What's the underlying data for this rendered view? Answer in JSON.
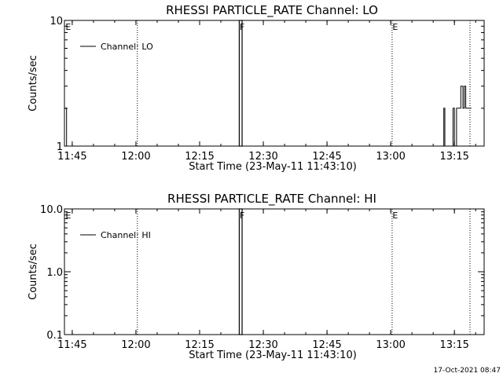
{
  "stamp": "17-Oct-2021 08:47",
  "chart_data": [
    {
      "type": "line",
      "title": "RHESSI PARTICLE_RATE Channel: LO",
      "xlabel": "Start Time (23-May-11 11:43:10)",
      "ylabel": "Counts/sec",
      "x_units": "time (HH:MM)",
      "xlim": [
        "11:43:10",
        "13:22:00"
      ],
      "ylim": [
        1,
        10
      ],
      "y_scale": "log",
      "grid": false,
      "legend": "top-left",
      "xticks": [
        "11:45",
        "12:00",
        "12:15",
        "12:30",
        "12:45",
        "13:00",
        "13:15"
      ],
      "yticks": [
        "1",
        "10"
      ],
      "series": [
        {
          "name": "Channel: LO",
          "color": "#000000",
          "points": [
            [
              "11:43:10",
              2
            ],
            [
              "11:43:40",
              2
            ],
            [
              "11:43:40",
              1
            ],
            [
              "13:12:30",
              1
            ],
            [
              "13:12:30",
              2
            ],
            [
              "13:12:45",
              2
            ],
            [
              "13:12:45",
              1
            ],
            [
              "13:14:40",
              1
            ],
            [
              "13:14:40",
              2
            ],
            [
              "13:15:00",
              2
            ],
            [
              "13:15:00",
              1
            ],
            [
              "13:15:30",
              1
            ],
            [
              "13:15:30",
              2
            ],
            [
              "13:16:30",
              2
            ],
            [
              "13:16:30",
              3
            ],
            [
              "13:17:00",
              3
            ],
            [
              "13:17:00",
              2
            ],
            [
              "13:17:20",
              2
            ],
            [
              "13:17:20",
              3
            ],
            [
              "13:17:40",
              3
            ],
            [
              "13:17:40",
              2
            ],
            [
              "13:19:00",
              2
            ]
          ]
        }
      ],
      "annotations": [
        {
          "text": "E",
          "time": "11:43:20",
          "line": false
        },
        {
          "text": "",
          "time": "12:00:20",
          "line": true
        },
        {
          "text": "F",
          "time": "12:24:20",
          "line": false
        },
        {
          "text": "E",
          "time": "13:00:20",
          "line": true
        },
        {
          "text": "",
          "time": "13:18:40",
          "line": true
        }
      ],
      "bands": [
        [
          "12:24:20",
          "12:25:00"
        ]
      ]
    },
    {
      "type": "line",
      "title": "RHESSI PARTICLE_RATE Channel: HI",
      "xlabel": "Start Time (23-May-11 11:43:10)",
      "ylabel": "Counts/sec",
      "x_units": "time (HH:MM)",
      "xlim": [
        "11:43:10",
        "13:22:00"
      ],
      "ylim": [
        0.1,
        10
      ],
      "y_scale": "log",
      "grid": false,
      "legend": "top-left",
      "xticks": [
        "11:45",
        "12:00",
        "12:15",
        "12:30",
        "12:45",
        "13:00",
        "13:15"
      ],
      "yticks": [
        "0.1",
        "1.0",
        "10.0"
      ],
      "series": [
        {
          "name": "Channel: HI",
          "color": "#000000",
          "points": []
        }
      ],
      "annotations": [
        {
          "text": "E",
          "time": "11:43:20",
          "line": false
        },
        {
          "text": "",
          "time": "12:00:20",
          "line": true
        },
        {
          "text": "F",
          "time": "12:24:20",
          "line": false
        },
        {
          "text": "E",
          "time": "13:00:20",
          "line": true
        },
        {
          "text": "",
          "time": "13:18:40",
          "line": true
        }
      ],
      "bands": [
        [
          "12:24:20",
          "12:25:00"
        ]
      ]
    }
  ]
}
